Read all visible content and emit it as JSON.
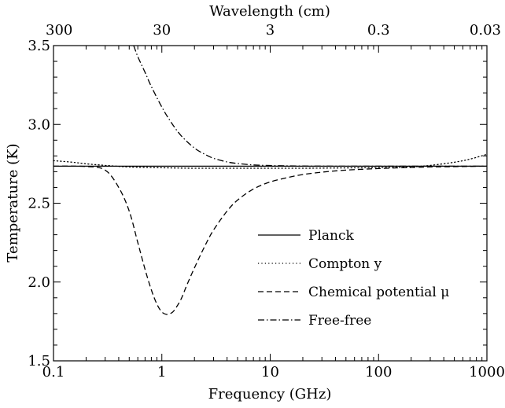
{
  "chart_data": {
    "type": "line",
    "xlabel": "Frequency (GHz)",
    "ylabel": "Temperature  (K)",
    "top_xlabel": "Wavelength (cm)",
    "xscale": "log",
    "xlim": [
      0.1,
      1000
    ],
    "ylim": [
      1.5,
      3.5
    ],
    "x_ticks": [
      {
        "value": 0.1,
        "label": "0.1"
      },
      {
        "value": 1,
        "label": "1"
      },
      {
        "value": 10,
        "label": "10"
      },
      {
        "value": 100,
        "label": "100"
      },
      {
        "value": 1000,
        "label": "1000"
      }
    ],
    "y_ticks": [
      {
        "value": 1.5,
        "label": "1.5"
      },
      {
        "value": 2.0,
        "label": "2.0"
      },
      {
        "value": 2.5,
        "label": "2.5"
      },
      {
        "value": 3.0,
        "label": "3.0"
      },
      {
        "value": 3.5,
        "label": "3.5"
      }
    ],
    "top_ticks": [
      {
        "frequency_ghz": 0.1,
        "label": "300"
      },
      {
        "frequency_ghz": 1,
        "label": "30"
      },
      {
        "frequency_ghz": 10,
        "label": "3"
      },
      {
        "frequency_ghz": 100,
        "label": "0.3"
      },
      {
        "frequency_ghz": 1000,
        "label": "0.03"
      }
    ],
    "grid": false,
    "legend_position": "center-right",
    "series": [
      {
        "name": "Planck",
        "style": "solid",
        "x": [
          0.1,
          1000
        ],
        "y": [
          2.735,
          2.735
        ]
      },
      {
        "name": "Compton y",
        "style": "dotted",
        "x": [
          0.1,
          0.15,
          0.2,
          0.3,
          0.5,
          1,
          2,
          5,
          10,
          20,
          50,
          100,
          200,
          300,
          500,
          700,
          1000
        ],
        "y": [
          2.77,
          2.76,
          2.75,
          2.74,
          2.73,
          2.725,
          2.722,
          2.722,
          2.722,
          2.722,
          2.724,
          2.726,
          2.73,
          2.74,
          2.76,
          2.78,
          2.81
        ]
      },
      {
        "name": "Chemical potential μ",
        "style": "dashed",
        "x": [
          0.1,
          0.2,
          0.3,
          0.4,
          0.5,
          0.6,
          0.7,
          0.8,
          0.9,
          1.0,
          1.1,
          1.2,
          1.3,
          1.5,
          1.7,
          2.0,
          2.5,
          3,
          4,
          5,
          7,
          10,
          15,
          20,
          30,
          50,
          100,
          200,
          300,
          500,
          1000
        ],
        "y": [
          2.735,
          2.733,
          2.71,
          2.6,
          2.45,
          2.25,
          2.08,
          1.95,
          1.86,
          1.81,
          1.795,
          1.8,
          1.82,
          1.89,
          1.98,
          2.09,
          2.23,
          2.33,
          2.45,
          2.52,
          2.59,
          2.635,
          2.665,
          2.682,
          2.697,
          2.71,
          2.72,
          2.727,
          2.73,
          2.732,
          2.735
        ]
      },
      {
        "name": "Free-free",
        "style": "dashdot",
        "x": [
          0.55,
          0.6,
          0.7,
          0.8,
          1.0,
          1.2,
          1.5,
          2,
          2.5,
          3,
          4,
          5,
          7,
          10,
          20,
          50,
          100,
          1000
        ],
        "y": [
          3.5,
          3.43,
          3.33,
          3.24,
          3.11,
          3.02,
          2.93,
          2.85,
          2.81,
          2.785,
          2.762,
          2.752,
          2.743,
          2.739,
          2.736,
          2.735,
          2.735,
          2.735
        ]
      }
    ]
  }
}
